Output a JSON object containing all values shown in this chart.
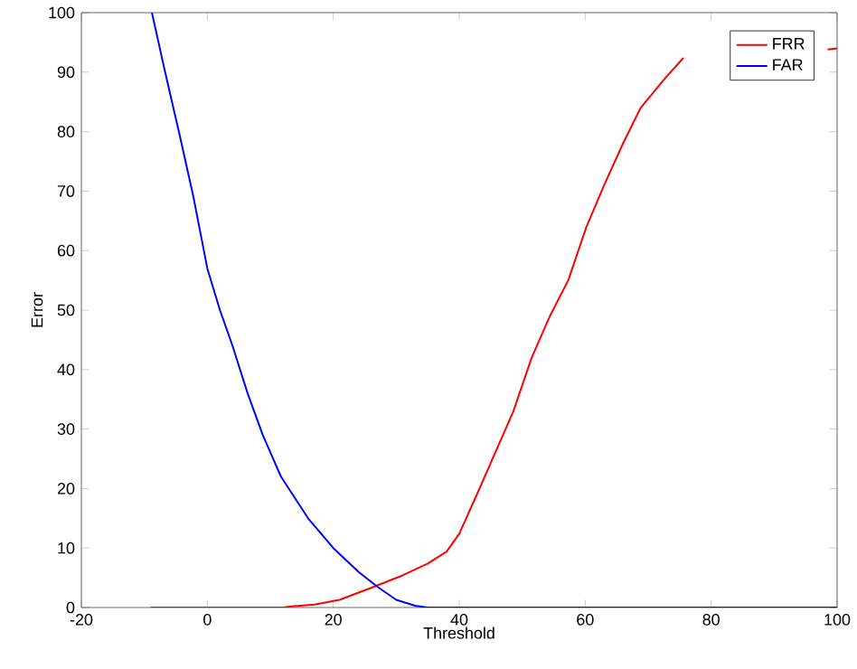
{
  "chart_data": {
    "type": "line",
    "xlabel": "Threshold",
    "ylabel": "Error",
    "xlim": [
      -20,
      100
    ],
    "ylim": [
      0,
      100
    ],
    "xticks": [
      -20,
      0,
      20,
      40,
      60,
      80,
      100
    ],
    "yticks": [
      0,
      10,
      20,
      30,
      40,
      50,
      60,
      70,
      80,
      90,
      100
    ],
    "grid": false,
    "legend": "top right",
    "marker": "none",
    "line_style": "solid",
    "series": [
      {
        "name": "FRR",
        "color": "#ff0000",
        "x": [
          -9,
          0,
          10,
          12,
          13.4,
          17,
          21,
          26,
          31,
          35,
          38,
          40,
          42.8,
          45.7,
          48.6,
          51.5,
          54.4,
          57.3,
          60.2,
          63,
          66,
          68.8,
          72.7,
          75.6,
          78,
          98.5,
          100
        ],
        "values": [
          0,
          0,
          0,
          0,
          0.2,
          0.5,
          1.3,
          3.3,
          5.4,
          7.4,
          9.4,
          12.4,
          19,
          26,
          33,
          42,
          49,
          55,
          64,
          71,
          78,
          84,
          89,
          92.4,
          null,
          93.8,
          94
        ]
      },
      {
        "name": "FAR",
        "color": "#0000ff",
        "x": [
          -8.8,
          -6.7,
          -4.3,
          -2.2,
          0,
          2,
          4,
          6.4,
          8.8,
          11.7,
          16,
          20,
          24,
          27,
          30,
          33,
          35,
          60,
          100
        ],
        "values": [
          100,
          90,
          79,
          69,
          57,
          50,
          44,
          36,
          29,
          22,
          15,
          10,
          6,
          3.5,
          1.3,
          0.3,
          0,
          0,
          0
        ]
      }
    ]
  }
}
